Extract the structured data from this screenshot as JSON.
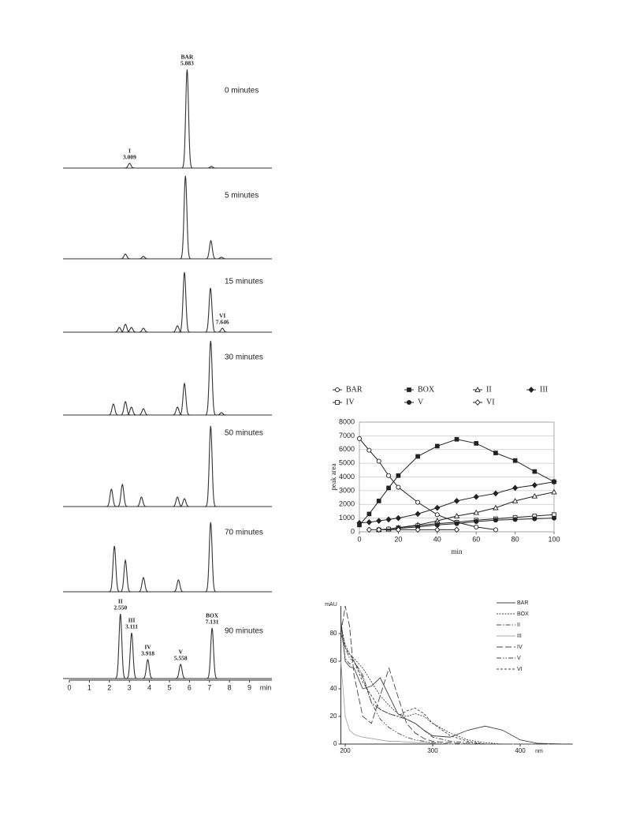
{
  "chart_data": [
    {
      "type": "chromatogram",
      "xlabel": "min",
      "xlim": [
        0,
        10.1
      ],
      "xticks": [
        0,
        1,
        2,
        3,
        4,
        5,
        6,
        7,
        8,
        9
      ],
      "ylim": [
        0,
        130
      ],
      "color": "#333333",
      "series": [
        {
          "name": "0 minutes",
          "x": [
            3.009,
            5.883,
            7.1
          ],
          "values": [
            6,
            125,
            2
          ],
          "peak_names": [
            "I",
            "BAR",
            null
          ],
          "x_labels": [
            "3.009",
            "5.883",
            null
          ]
        },
        {
          "name": "5 minutes",
          "x": [
            2.8,
            3.7,
            5.8,
            7.07,
            7.6
          ],
          "values": [
            6,
            3,
            105,
            23,
            2
          ],
          "peak_names": [
            null,
            null,
            null,
            null,
            null
          ],
          "x_labels": [
            null,
            null,
            null,
            null,
            null
          ]
        },
        {
          "name": "15 minutes",
          "x": [
            2.5,
            2.8,
            3.1,
            3.7,
            5.4,
            5.75,
            7.05,
            7.646
          ],
          "values": [
            6,
            10,
            6,
            5,
            8,
            76,
            56,
            5
          ],
          "peak_names": [
            null,
            null,
            null,
            null,
            null,
            null,
            null,
            "VI"
          ],
          "x_labels": [
            null,
            null,
            null,
            null,
            null,
            null,
            null,
            "7.646"
          ]
        },
        {
          "name": "30 minutes",
          "x": [
            2.2,
            2.8,
            3.1,
            3.7,
            5.4,
            5.75,
            7.06,
            7.6
          ],
          "values": [
            14,
            17,
            10,
            8,
            10,
            40,
            94,
            3
          ],
          "peak_names": [
            null,
            null,
            null,
            null,
            null,
            null,
            null,
            null
          ],
          "x_labels": [
            null,
            null,
            null,
            null,
            null,
            null,
            null,
            null
          ]
        },
        {
          "name": "50 minutes",
          "x": [
            2.1,
            2.65,
            3.6,
            5.4,
            5.75,
            7.06
          ],
          "values": [
            22,
            28,
            12,
            12,
            10,
            102
          ],
          "peak_names": [
            null,
            null,
            null,
            null,
            null,
            null
          ],
          "x_labels": [
            null,
            null,
            null,
            null,
            null,
            null
          ]
        },
        {
          "name": "70 minutes",
          "x": [
            2.25,
            2.8,
            3.7,
            5.45,
            7.06
          ],
          "values": [
            58,
            40,
            18,
            15,
            88
          ],
          "peak_names": [
            null,
            null,
            null,
            null,
            null
          ],
          "x_labels": [
            null,
            null,
            null,
            null,
            null
          ]
        },
        {
          "name": "90 minutes",
          "x": [
            2.55,
            3.111,
            3.918,
            5.558,
            7.131
          ],
          "values": [
            82,
            58,
            24,
            18,
            64
          ],
          "peak_names": [
            "II",
            "III",
            "IV",
            "V",
            "BOX"
          ],
          "x_labels": [
            "2.550",
            "3.111",
            "3.918",
            "5.558",
            "7.131"
          ]
        }
      ]
    },
    {
      "type": "line",
      "xlabel": "min",
      "ylabel": "peak area",
      "xlim": [
        0,
        100
      ],
      "xticks": [
        0,
        20,
        40,
        60,
        80,
        100
      ],
      "ylim": [
        0,
        8000
      ],
      "yticks": [
        0,
        1000,
        2000,
        3000,
        4000,
        5000,
        6000,
        7000,
        8000
      ],
      "grid": true,
      "color": "#222222",
      "series": [
        {
          "name": "BAR",
          "marker": "circle-open",
          "x": [
            0,
            5,
            10,
            15,
            20,
            30,
            40,
            50,
            60,
            70
          ],
          "values": [
            6800,
            5950,
            5150,
            4100,
            3250,
            2150,
            1250,
            700,
            350,
            150
          ]
        },
        {
          "name": "BOX",
          "marker": "square-filled",
          "x": [
            0,
            5,
            10,
            15,
            20,
            30,
            40,
            50,
            60,
            70,
            80,
            90,
            100
          ],
          "values": [
            500,
            1300,
            2250,
            3200,
            4100,
            5500,
            6250,
            6750,
            6450,
            5750,
            5200,
            4400,
            3650
          ]
        },
        {
          "name": "II",
          "marker": "triangle-open",
          "x": [
            10,
            15,
            20,
            30,
            40,
            50,
            60,
            70,
            80,
            90,
            100
          ],
          "values": [
            150,
            200,
            300,
            500,
            800,
            1150,
            1400,
            1750,
            2250,
            2600,
            2900
          ]
        },
        {
          "name": "III",
          "marker": "diamond-filled",
          "x": [
            0,
            5,
            10,
            15,
            20,
            30,
            40,
            50,
            60,
            70,
            80,
            90,
            100
          ],
          "values": [
            650,
            700,
            800,
            900,
            1000,
            1300,
            1750,
            2250,
            2550,
            2800,
            3200,
            3400,
            3650
          ]
        },
        {
          "name": "IV",
          "marker": "square-open",
          "x": [
            10,
            15,
            20,
            30,
            40,
            50,
            60,
            70,
            80,
            90,
            100
          ],
          "values": [
            150,
            200,
            300,
            450,
            600,
            700,
            850,
            950,
            1050,
            1150,
            1250
          ]
        },
        {
          "name": "V",
          "marker": "circle-filled",
          "x": [
            10,
            20,
            30,
            40,
            50,
            60,
            70,
            80,
            90,
            100
          ],
          "values": [
            150,
            250,
            350,
            500,
            600,
            750,
            850,
            900,
            950,
            1000
          ]
        },
        {
          "name": "VI",
          "marker": "diamond-open",
          "x": [
            5,
            10,
            20,
            30,
            40,
            50
          ],
          "values": [
            150,
            150,
            150,
            150,
            150,
            150
          ]
        }
      ]
    },
    {
      "type": "line",
      "xlabel": "nm",
      "ylabel": "mAU",
      "xlim": [
        195,
        460
      ],
      "xticks": [
        200,
        300,
        400
      ],
      "ylim": [
        0,
        100
      ],
      "yticks": [
        0,
        20,
        40,
        60,
        80
      ],
      "grid": false,
      "x": [
        195,
        200,
        205,
        210,
        220,
        230,
        240,
        250,
        260,
        270,
        280,
        290,
        300,
        320,
        340,
        360,
        380,
        400,
        420,
        450
      ],
      "series": [
        {
          "name": "BAR",
          "color": "#444444",
          "dash": "solid",
          "values": [
            90,
            60,
            56,
            55,
            40,
            42,
            48,
            35,
            22,
            18,
            15,
            10,
            6,
            5,
            10,
            13,
            10,
            3,
            0.5,
            0
          ]
        },
        {
          "name": "BOX",
          "color": "#444444",
          "dash": "dotted",
          "values": [
            85,
            72,
            65,
            62,
            55,
            45,
            35,
            28,
            22,
            20,
            22,
            20,
            15,
            8,
            3,
            1,
            0,
            0,
            0,
            0
          ]
        },
        {
          "name": "II",
          "color": "#444444",
          "dash": "dashdot",
          "values": [
            80,
            70,
            62,
            60,
            50,
            30,
            25,
            22,
            20,
            18,
            15,
            10,
            5,
            2,
            1,
            0,
            0,
            0,
            0,
            0
          ]
        },
        {
          "name": "III",
          "color": "#aaaaaa",
          "dash": "solid",
          "values": [
            60,
            20,
            10,
            7,
            5,
            4,
            3,
            2,
            2,
            1.5,
            1,
            1,
            0.5,
            0,
            0,
            0,
            0,
            0,
            0,
            0
          ]
        },
        {
          "name": "IV",
          "color": "#444444",
          "dash": "longdash",
          "values": [
            80,
            100,
            85,
            50,
            20,
            15,
            35,
            55,
            35,
            15,
            8,
            4,
            2,
            1,
            0,
            0,
            0,
            0,
            0,
            0
          ]
        },
        {
          "name": "V",
          "color": "#444444",
          "dash": "dashdotdot",
          "values": [
            85,
            62,
            58,
            60,
            48,
            30,
            18,
            12,
            8,
            5,
            3,
            2,
            1,
            0,
            0,
            0,
            0,
            0,
            0,
            0
          ]
        },
        {
          "name": "VI",
          "color": "#444444",
          "dash": "dashed",
          "values": [
            88,
            70,
            65,
            60,
            45,
            35,
            25,
            22,
            20,
            24,
            26,
            22,
            15,
            6,
            2,
            0,
            0,
            0,
            0,
            0
          ]
        }
      ]
    }
  ]
}
